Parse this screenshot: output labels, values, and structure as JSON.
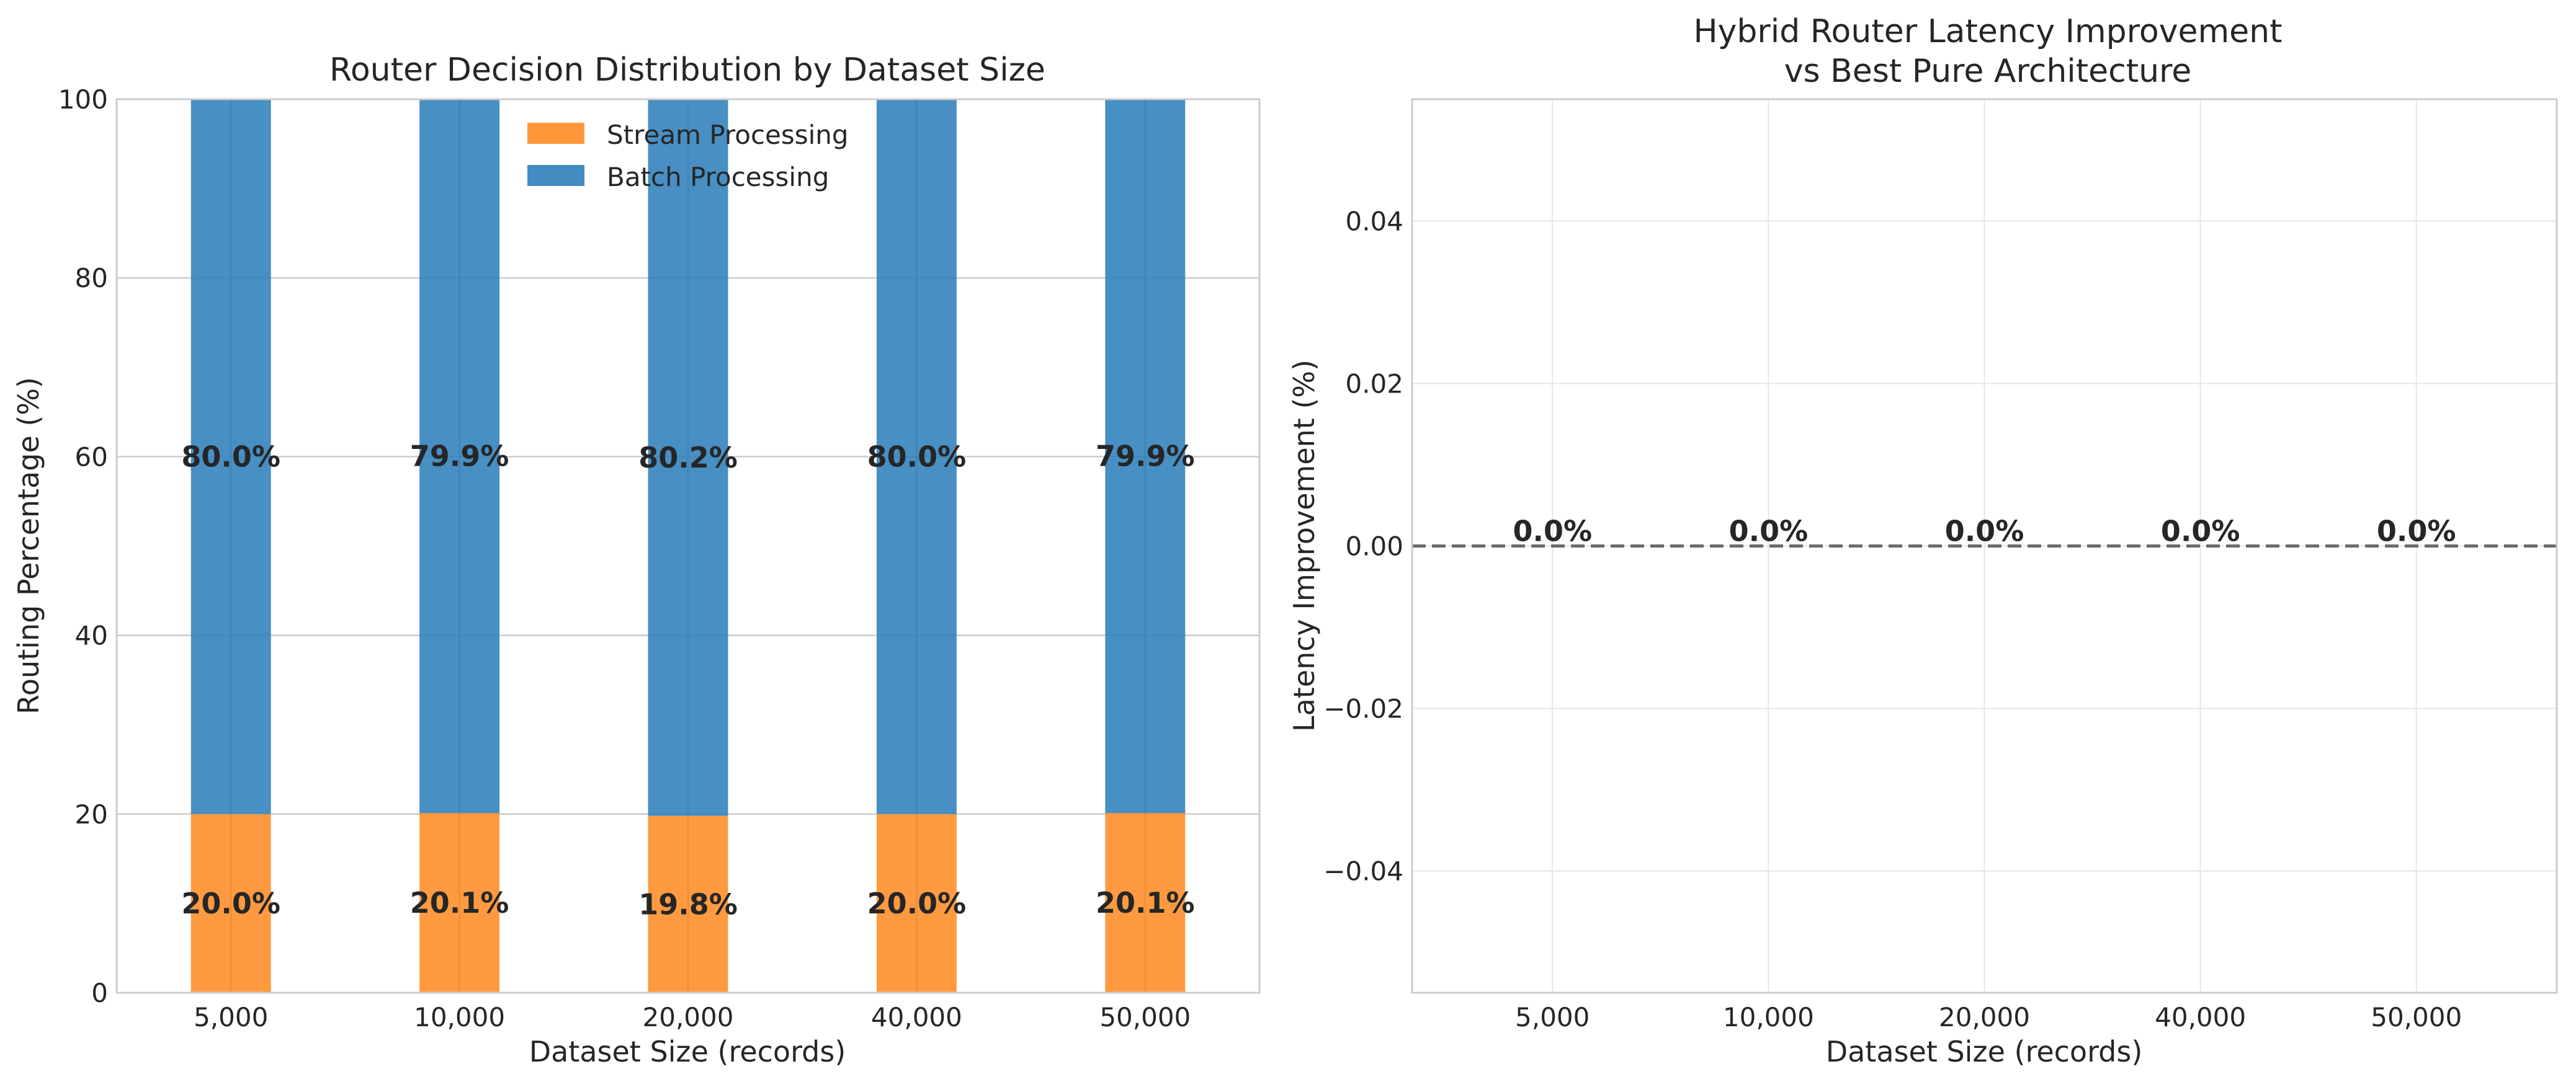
{
  "chart_data": [
    {
      "type": "bar",
      "stacked": true,
      "title": "Router Decision Distribution by Dataset Size",
      "xlabel": "Dataset Size (records)",
      "ylabel": "Routing Percentage (%)",
      "categories": [
        "5,000",
        "10,000",
        "20,000",
        "40,000",
        "50,000"
      ],
      "ylim": [
        0,
        100
      ],
      "yticks": [
        "0",
        "20",
        "40",
        "60",
        "80",
        "100"
      ],
      "grid": true,
      "legend_position": "top-center",
      "series": [
        {
          "name": "Stream Processing",
          "values": [
            20.0,
            20.1,
            19.8,
            20.0,
            20.1
          ],
          "labels": [
            "20.0%",
            "20.1%",
            "19.8%",
            "20.0%",
            "20.1%"
          ],
          "color": "#ff8c25"
        },
        {
          "name": "Batch Processing",
          "values": [
            80.0,
            79.9,
            80.2,
            80.0,
            79.9
          ],
          "labels": [
            "80.0%",
            "79.9%",
            "80.2%",
            "80.0%",
            "79.9%"
          ],
          "color": "#2f7fbb"
        }
      ]
    },
    {
      "type": "bar",
      "title_lines": [
        "Hybrid Router Latency Improvement",
        "vs Best Pure Architecture"
      ],
      "xlabel": "Dataset Size (records)",
      "ylabel": "Latency Improvement (%)",
      "categories": [
        "5,000",
        "10,000",
        "20,000",
        "40,000",
        "50,000"
      ],
      "values": [
        0.0,
        0.0,
        0.0,
        0.0,
        0.0
      ],
      "labels": [
        "0.0%",
        "0.0%",
        "0.0%",
        "0.0%",
        "0.0%"
      ],
      "ylim": [
        -0.055,
        0.055
      ],
      "yticks": [
        "−0.04",
        "−0.02",
        "0.00",
        "0.02",
        "0.04"
      ],
      "ytick_values": [
        -0.04,
        -0.02,
        0.0,
        0.02,
        0.04
      ],
      "grid": true,
      "reference_line": {
        "y": 0,
        "style": "dashed",
        "color": "#6b6b6b"
      }
    }
  ]
}
